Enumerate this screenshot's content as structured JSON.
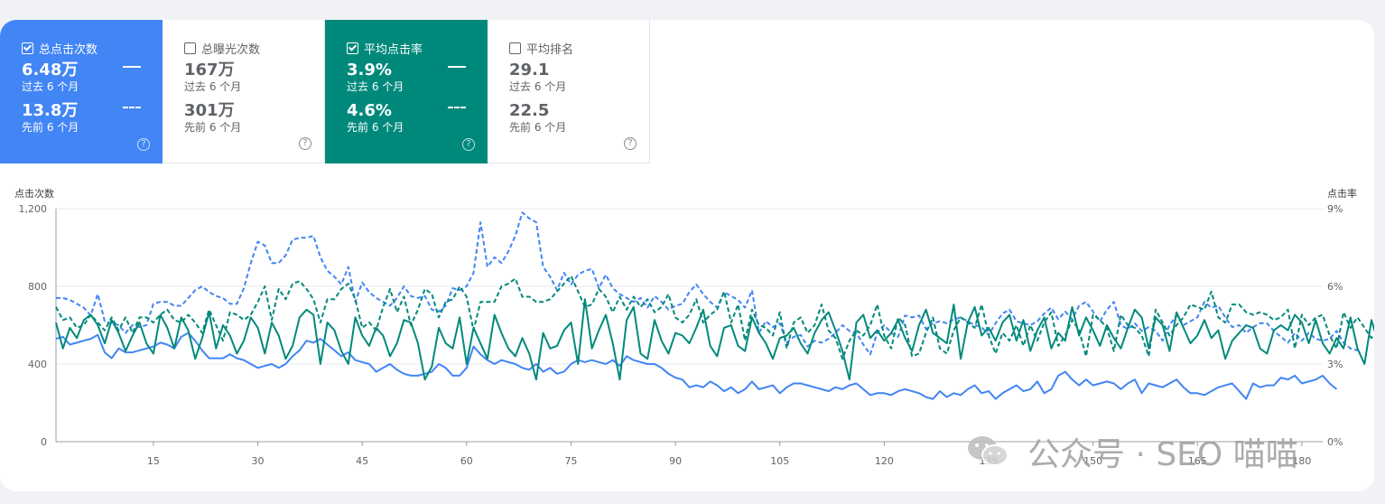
{
  "cards": [
    {
      "label": "总点击次数",
      "checked": true,
      "current": "6.48万",
      "current_period": "过去 6 个月",
      "previous": "13.8万",
      "previous_period": "先前 6 个月"
    },
    {
      "label": "总曝光次数",
      "checked": false,
      "current": "167万",
      "current_period": "过去 6 个月",
      "previous": "301万",
      "previous_period": "先前 6 个月"
    },
    {
      "label": "平均点击率",
      "checked": true,
      "current": "3.9%",
      "current_period": "过去 6 个月",
      "previous": "4.6%",
      "previous_period": "先前 6 个月"
    },
    {
      "label": "平均排名",
      "checked": false,
      "current": "29.1",
      "current_period": "过去 6 个月",
      "previous": "22.5",
      "previous_period": "先前 6 个月"
    }
  ],
  "colors": {
    "clicks": "#4285f4",
    "ctr": "#00897b",
    "grid": "#e8eaed",
    "axis_text": "#5f6368"
  },
  "watermark": "公众号 · SEO 喵喵",
  "chart_data": {
    "type": "line",
    "y_left_label": "点击次数",
    "y_right_label": "点击率",
    "y_left_ticks": [
      "0",
      "400",
      "800",
      "1,200"
    ],
    "y_right_ticks": [
      "0%",
      "3%",
      "6%",
      "9%"
    ],
    "ylim_left": [
      0,
      1200
    ],
    "ylim_right": [
      0,
      9
    ],
    "x_ticks": [
      15,
      30,
      45,
      60,
      75,
      90,
      105,
      120,
      135,
      150,
      165,
      180
    ],
    "xlim": [
      1,
      183
    ],
    "grid": true,
    "series": [
      {
        "axis": "left",
        "style": "solid",
        "color": "clicks",
        "values": [
          530,
          540,
          500,
          510,
          520,
          530,
          550,
          460,
          430,
          480,
          460,
          460,
          470,
          480,
          490,
          510,
          500,
          480,
          540,
          560,
          520,
          470,
          430,
          430,
          430,
          450,
          430,
          420,
          400,
          380,
          390,
          400,
          380,
          400,
          440,
          470,
          520,
          510,
          530,
          500,
          470,
          440,
          460,
          420,
          410,
          400,
          360,
          380,
          400,
          370,
          350,
          340,
          340,
          350,
          360,
          400,
          380,
          340,
          340,
          380,
          490,
          450,
          420,
          400,
          420,
          410,
          400,
          380,
          370,
          400,
          360,
          380,
          350,
          360,
          400,
          420,
          410,
          420,
          410,
          400,
          420,
          390,
          440,
          420,
          410,
          400,
          400,
          380,
          350,
          330,
          320,
          280,
          290,
          280,
          310,
          290,
          260,
          280,
          250,
          270,
          310,
          270,
          280,
          290,
          250,
          280,
          300,
          300,
          290,
          280,
          270,
          260,
          280,
          270,
          290,
          300,
          270,
          240,
          250,
          250,
          240,
          260,
          270,
          260,
          250,
          230,
          220,
          260,
          230,
          250,
          240,
          270,
          290,
          250,
          260,
          220,
          250,
          270,
          290,
          260,
          270,
          310,
          250,
          270,
          340,
          360,
          320,
          290,
          320,
          290,
          300,
          310,
          300,
          270,
          300,
          320,
          250,
          300,
          290,
          280,
          300,
          320,
          280,
          250,
          250,
          240,
          260,
          280,
          290,
          300,
          260,
          220,
          300,
          280,
          290,
          290,
          330,
          320,
          340,
          300,
          310,
          320,
          340,
          300,
          270
        ]
      },
      {
        "axis": "left",
        "style": "dashed",
        "color": "clicks",
        "values": [
          740,
          740,
          730,
          710,
          690,
          650,
          760,
          620,
          610,
          600,
          560,
          600,
          590,
          600,
          710,
          720,
          720,
          700,
          700,
          740,
          780,
          800,
          770,
          750,
          740,
          710,
          710,
          790,
          920,
          1030,
          1010,
          920,
          920,
          960,
          1040,
          1050,
          1050,
          1060,
          950,
          880,
          850,
          810,
          900,
          720,
          820,
          770,
          740,
          720,
          700,
          740,
          800,
          750,
          740,
          750,
          680,
          670,
          700,
          790,
          780,
          800,
          870,
          1130,
          900,
          950,
          920,
          980,
          1060,
          1180,
          1150,
          1130,
          900,
          850,
          780,
          870,
          810,
          860,
          880,
          890,
          790,
          860,
          790,
          760,
          740,
          720,
          740,
          690,
          750,
          720,
          680,
          700,
          710,
          770,
          810,
          760,
          720,
          690,
          770,
          750,
          730,
          690,
          780,
          560,
          620,
          590,
          610,
          510,
          540,
          550,
          490,
          520,
          510,
          530,
          560,
          600,
          570,
          560,
          500,
          450,
          560,
          600,
          560,
          540,
          650,
          640,
          650,
          580,
          610,
          620,
          610,
          630,
          640,
          620,
          600,
          590,
          550,
          610,
          660,
          680,
          620,
          610,
          600,
          620,
          660,
          690,
          630,
          670,
          630,
          700,
          720,
          670,
          620,
          680,
          720,
          600,
          580,
          610,
          570,
          590,
          570,
          520,
          600,
          650,
          600,
          620,
          640,
          720,
          690,
          700,
          640,
          590,
          600,
          560,
          590,
          610,
          610,
          570,
          540,
          510,
          560,
          520,
          560,
          530,
          520,
          530,
          570,
          510,
          480,
          470
        ]
      },
      {
        "axis": "right",
        "style": "solid",
        "color": "ctr",
        "values": [
          4.6,
          3.6,
          4.4,
          4.0,
          4.7,
          4.9,
          4.5,
          3.8,
          4.7,
          4.2,
          3.5,
          4.1,
          4.6,
          3.8,
          3.4,
          4.9,
          4.4,
          3.6,
          4.8,
          4.3,
          3.2,
          4.0,
          5.0,
          3.6,
          4.5,
          4.1,
          3.4,
          3.9,
          4.8,
          4.4,
          3.4,
          4.6,
          4.1,
          3.2,
          3.7,
          4.8,
          5.1,
          4.9,
          3.0,
          4.6,
          4.3,
          3.5,
          3.0,
          4.8,
          4.1,
          3.7,
          4.4,
          4.1,
          3.3,
          3.8,
          4.7,
          4.6,
          3.8,
          2.4,
          2.9,
          4.4,
          3.8,
          3.6,
          4.8,
          3.0,
          4.4,
          3.8,
          3.2,
          4.9,
          4.2,
          3.6,
          3.3,
          4.0,
          3.4,
          2.4,
          4.2,
          3.6,
          3.7,
          4.3,
          4.6,
          3.0,
          5.5,
          3.6,
          4.3,
          4.9,
          3.8,
          2.4,
          4.7,
          5.2,
          3.4,
          3.2,
          4.7,
          3.9,
          3.4,
          4.2,
          4.1,
          3.8,
          4.4,
          5.1,
          3.7,
          3.3,
          4.4,
          4.5,
          3.7,
          3.5,
          4.8,
          4.2,
          3.8,
          3.2,
          4.0,
          4.1,
          4.4,
          3.8,
          3.4,
          4.2,
          4.7,
          5.0,
          4.3,
          3.5,
          2.4,
          4.6,
          4.9,
          4.0,
          4.3,
          3.9,
          4.2,
          4.7,
          4.0,
          3.5,
          4.5,
          5.1,
          4.2,
          4.0,
          3.8,
          5.3,
          3.2,
          4.6,
          5.2,
          4.1,
          4.4,
          3.9,
          4.6,
          4.9,
          3.9,
          4.7,
          3.5,
          4.3,
          4.8,
          3.6,
          4.2,
          3.9,
          5.2,
          4.1,
          4.8,
          4.3,
          3.7,
          4.5,
          4.0,
          3.6,
          4.4,
          5.1,
          4.8,
          3.6,
          4.8,
          4.5,
          3.5,
          5.0,
          4.4,
          3.8,
          4.1,
          4.7,
          4.0,
          4.3,
          3.2,
          3.9,
          4.2,
          4.5,
          4.4,
          3.6,
          3.4,
          4.3,
          4.5,
          4.3,
          4.9,
          4.6,
          3.8,
          4.7,
          3.8,
          3.4,
          4.0,
          3.6,
          4.8,
          3.6,
          3.0,
          4.7,
          3.8,
          4.1,
          3.9,
          3.7
        ]
      },
      {
        "axis": "right",
        "style": "dashed",
        "color": "ctr",
        "values": [
          5.2,
          4.7,
          4.8,
          4.4,
          4.5,
          4.9,
          4.6,
          4.3,
          4.8,
          4.3,
          4.8,
          4.2,
          4.8,
          4.8,
          4.6,
          4.9,
          5.1,
          4.7,
          4.6,
          4.9,
          4.6,
          4.2,
          5.1,
          4.5,
          3.9,
          5.0,
          4.9,
          4.7,
          4.9,
          5.4,
          6.0,
          4.7,
          5.9,
          5.5,
          6.1,
          6.2,
          5.9,
          5.5,
          4.6,
          5.5,
          5.5,
          5.9,
          6.1,
          5.5,
          4.4,
          4.6,
          4.3,
          5.2,
          5.9,
          5.0,
          5.6,
          4.5,
          5.1,
          5.9,
          5.7,
          4.8,
          5.4,
          5.5,
          6.0,
          5.6,
          4.3,
          5.4,
          5.4,
          5.4,
          6.0,
          6.1,
          6.3,
          5.6,
          5.6,
          5.4,
          5.4,
          5.5,
          5.8,
          6.1,
          6.4,
          5.8,
          5.2,
          5.3,
          5.9,
          5.6,
          5.0,
          5.6,
          5.1,
          5.6,
          5.2,
          5.5,
          5.0,
          5.2,
          5.7,
          4.8,
          4.6,
          4.9,
          5.5,
          4.6,
          4.9,
          5.1,
          5.8,
          4.6,
          5.3,
          3.9,
          5.1,
          4.5,
          4.4,
          4.1,
          5.0,
          3.6,
          4.6,
          4.8,
          4.2,
          4.5,
          5.3,
          4.3,
          4.0,
          3.2,
          3.9,
          4.3,
          4.1,
          4.5,
          5.3,
          4.1,
          3.6,
          4.8,
          4.5,
          3.3,
          3.4,
          4.2,
          4.8,
          3.6,
          3.4,
          4.3,
          4.8,
          4.6,
          4.4,
          5.3,
          4.1,
          3.4,
          4.2,
          3.9,
          4.5,
          3.7,
          4.5,
          3.9,
          4.6,
          5.0,
          3.7,
          4.1,
          4.7,
          4.3,
          3.3,
          4.9,
          4.7,
          4.4,
          3.5,
          4.9,
          4.5,
          4.4,
          4.1,
          3.3,
          5.1,
          4.6,
          4.1,
          4.5,
          4.8,
          5.3,
          5.2,
          5.1,
          5.8,
          4.8,
          4.6,
          5.3,
          5.3,
          5.0,
          4.9,
          5.0,
          4.9,
          4.7,
          4.8,
          5.1,
          3.6,
          4.9,
          4.5,
          4.8,
          4.9,
          4.1,
          3.6,
          5.0,
          4.4,
          4.8,
          4.4,
          4.0,
          4.3,
          4.0,
          4.2
        ]
      }
    ]
  }
}
